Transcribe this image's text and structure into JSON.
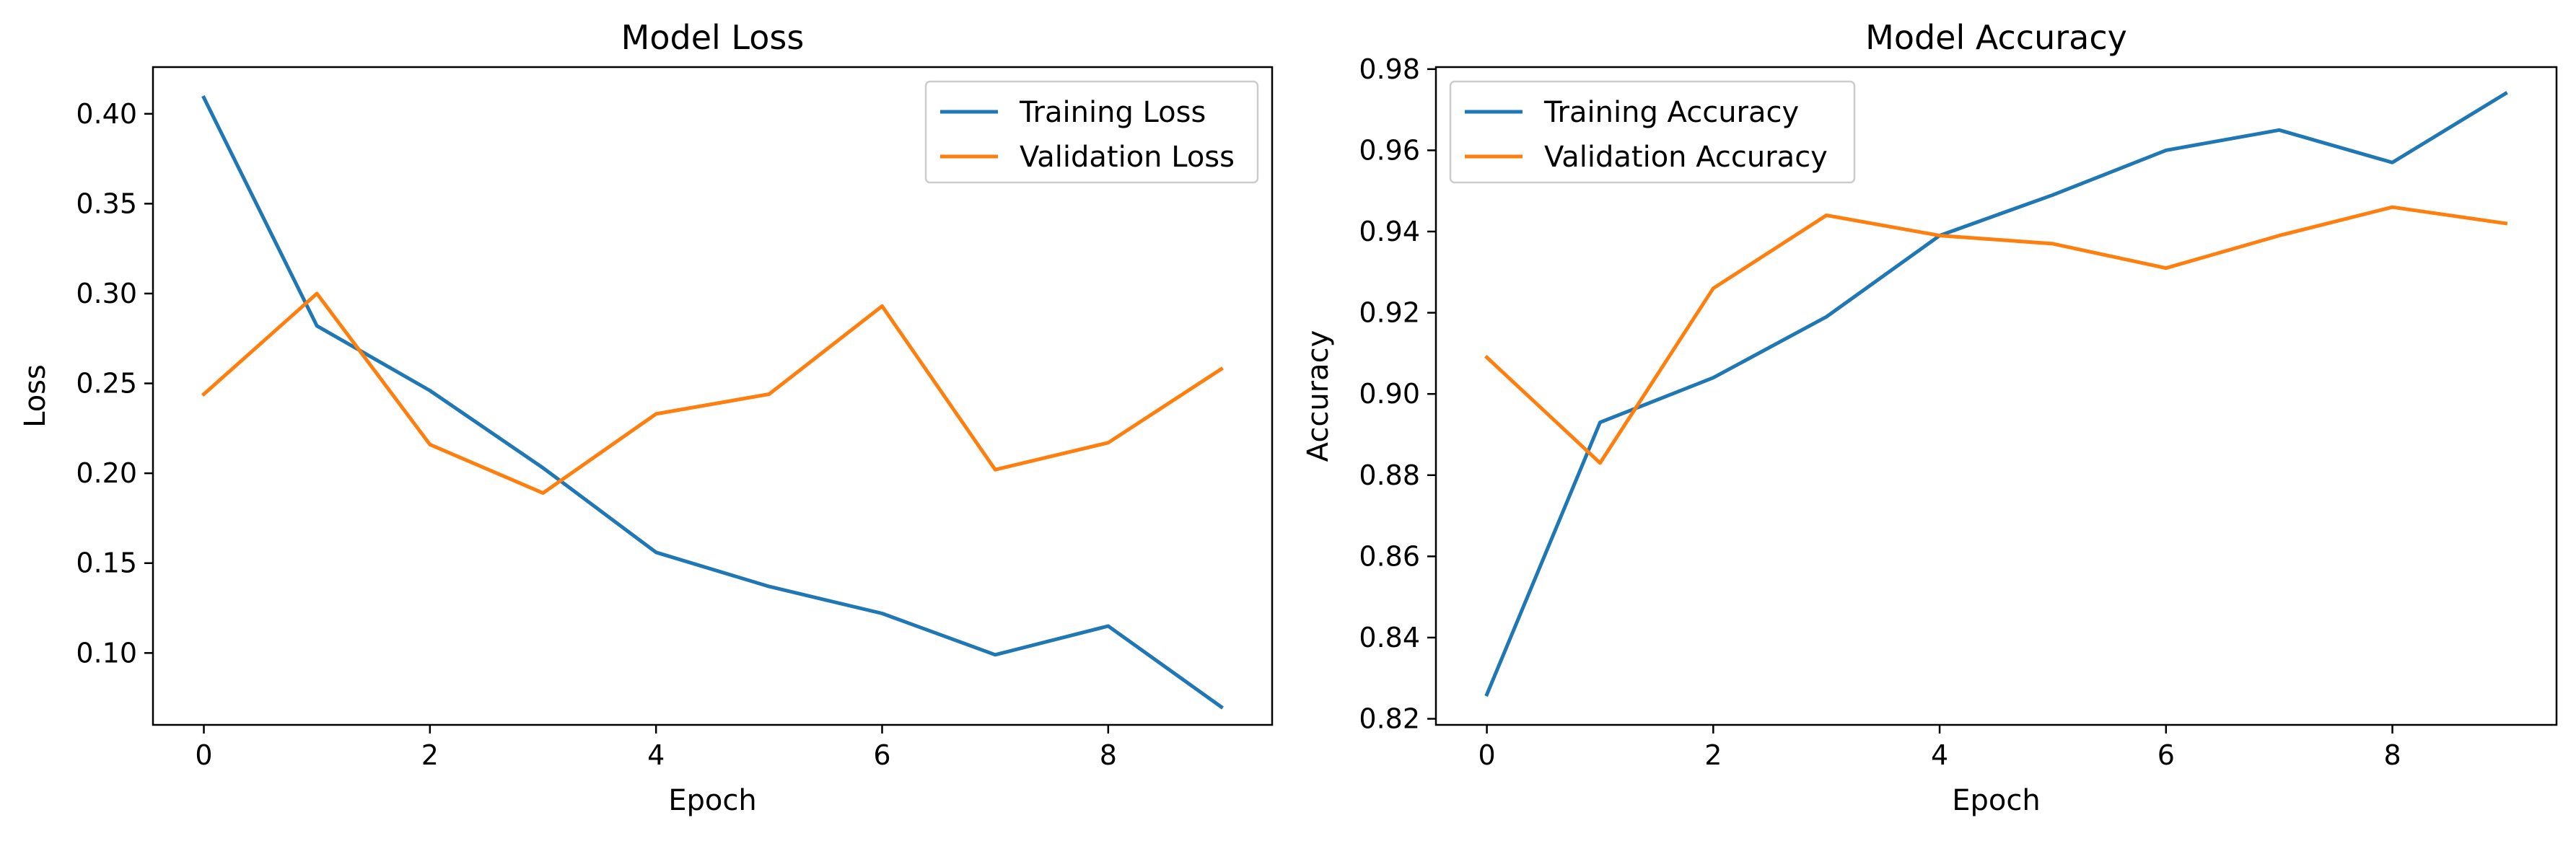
{
  "chart_data": [
    {
      "type": "line",
      "title": "Model Loss",
      "xlabel": "Epoch",
      "ylabel": "Loss",
      "x": [
        0,
        1,
        2,
        3,
        4,
        5,
        6,
        7,
        8,
        9
      ],
      "xlim": [
        -0.45,
        9.45
      ],
      "ylim": [
        0.06,
        0.426
      ],
      "xticks": [
        0,
        2,
        4,
        6,
        8
      ],
      "xtick_labels": [
        "0",
        "2",
        "4",
        "6",
        "8"
      ],
      "yticks": [
        0.1,
        0.15,
        0.2,
        0.25,
        0.3,
        0.35,
        0.4
      ],
      "ytick_labels": [
        "0.10",
        "0.15",
        "0.20",
        "0.25",
        "0.30",
        "0.35",
        "0.40"
      ],
      "grid": false,
      "legend_position": "upper right",
      "series": [
        {
          "name": "Training Loss",
          "color": "#1f77b4",
          "values": [
            0.409,
            0.282,
            0.246,
            0.203,
            0.156,
            0.137,
            0.122,
            0.099,
            0.115,
            0.07
          ]
        },
        {
          "name": "Validation Loss",
          "color": "#ff7f0e",
          "values": [
            0.244,
            0.3,
            0.216,
            0.189,
            0.233,
            0.244,
            0.293,
            0.202,
            0.217,
            0.258
          ]
        }
      ]
    },
    {
      "type": "line",
      "title": "Model Accuracy",
      "xlabel": "Epoch",
      "ylabel": "Accuracy",
      "x": [
        0,
        1,
        2,
        3,
        4,
        5,
        6,
        7,
        8,
        9
      ],
      "xlim": [
        -0.45,
        9.45
      ],
      "ylim": [
        0.8185,
        0.9805
      ],
      "xticks": [
        0,
        2,
        4,
        6,
        8
      ],
      "xtick_labels": [
        "0",
        "2",
        "4",
        "6",
        "8"
      ],
      "yticks": [
        0.82,
        0.84,
        0.86,
        0.88,
        0.9,
        0.92,
        0.94,
        0.96,
        0.98
      ],
      "ytick_labels": [
        "0.82",
        "0.84",
        "0.86",
        "0.88",
        "0.90",
        "0.92",
        "0.94",
        "0.96",
        "0.98"
      ],
      "grid": false,
      "legend_position": "upper left",
      "series": [
        {
          "name": "Training Accuracy",
          "color": "#1f77b4",
          "values": [
            0.826,
            0.893,
            0.904,
            0.919,
            0.939,
            0.949,
            0.96,
            0.965,
            0.957,
            0.974
          ]
        },
        {
          "name": "Validation Accuracy",
          "color": "#ff7f0e",
          "values": [
            0.909,
            0.883,
            0.926,
            0.944,
            0.939,
            0.937,
            0.931,
            0.939,
            0.946,
            0.942
          ]
        }
      ]
    }
  ]
}
